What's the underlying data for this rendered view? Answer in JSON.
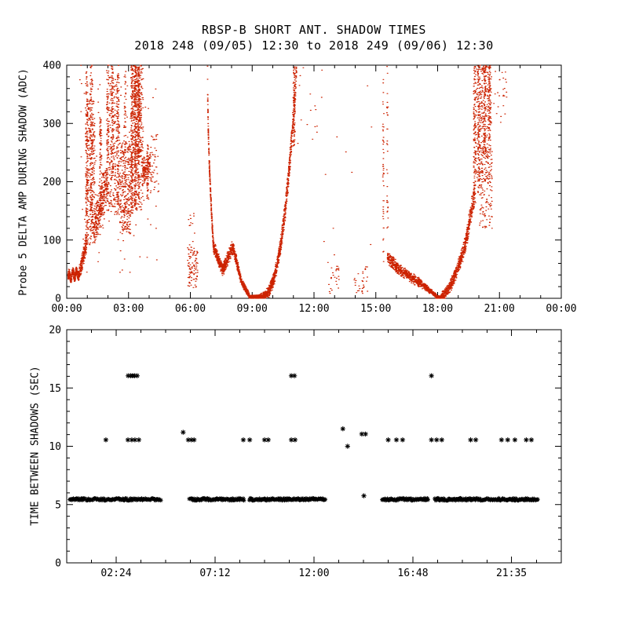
{
  "page": {
    "background": "#ffffff"
  },
  "chart_data": [
    {
      "type": "scatter",
      "panel": "top",
      "title": "RBSP-B SHORT ANT. SHADOW TIMES",
      "subtitle": "2018 248 (09/05) 12:30 to 2018 249 (09/06) 12:30",
      "ylabel": "Probe 5 DELTA AMP DURING SHADOW (ADC)",
      "xlim_hours": [
        0,
        24
      ],
      "ylim": [
        0,
        400
      ],
      "yticks": [
        0,
        100,
        200,
        300,
        400
      ],
      "ytick_minor_step": 20,
      "xticks": [
        {
          "hour": 0,
          "label": "00:00"
        },
        {
          "hour": 3,
          "label": "03:00"
        },
        {
          "hour": 6,
          "label": "06:00"
        },
        {
          "hour": 9,
          "label": "09:00"
        },
        {
          "hour": 12,
          "label": "12:00"
        },
        {
          "hour": 15,
          "label": "15:00"
        },
        {
          "hour": 18,
          "label": "18:00"
        },
        {
          "hour": 21,
          "label": "21:00"
        },
        {
          "hour": 24,
          "label": "00:00"
        }
      ],
      "xtick_minor_step": 1,
      "marker": "dot",
      "marker_color": "#cc2200",
      "segments": [
        {
          "kind": "band",
          "x": [
            0.05,
            0.6
          ],
          "y": [
            37,
            44
          ],
          "wave": 6,
          "waves": 3,
          "thick": 7,
          "n": 320
        },
        {
          "kind": "curve",
          "x": [
            0.6,
            0.95
          ],
          "y": [
            48,
            95
          ],
          "pow": 1.2,
          "thick": [
            14,
            22
          ],
          "n": 170
        },
        {
          "kind": "streak",
          "xc": 0.95,
          "y": [
            70,
            390
          ],
          "xjit": 0.05,
          "n": 150
        },
        {
          "kind": "cloud",
          "x": [
            0.95,
            1.35
          ],
          "y": [
            90,
            340
          ],
          "n": 280
        },
        {
          "kind": "streak",
          "xc": 1.18,
          "y": [
            100,
            400
          ],
          "xjit": 0.06,
          "n": 120
        },
        {
          "kind": "curve",
          "x": [
            1.3,
            1.95
          ],
          "y": [
            120,
            200
          ],
          "pow": 1,
          "thick": [
            40,
            50
          ],
          "n": 320
        },
        {
          "kind": "streak",
          "xc": 1.63,
          "y": [
            140,
            310
          ],
          "xjit": 0.05,
          "n": 90
        },
        {
          "kind": "streak",
          "xc": 1.97,
          "y": [
            150,
            400
          ],
          "xjit": 0.05,
          "n": 110
        },
        {
          "kind": "cloud",
          "x": [
            2.0,
            2.55
          ],
          "y": [
            140,
            380
          ],
          "n": 240
        },
        {
          "kind": "streak",
          "xc": 2.2,
          "y": [
            200,
            400
          ],
          "xjit": 0.05,
          "n": 90
        },
        {
          "kind": "streak",
          "xc": 2.46,
          "y": [
            160,
            400
          ],
          "xjit": 0.05,
          "n": 90
        },
        {
          "kind": "cloud",
          "x": [
            2.55,
            3.1
          ],
          "y": [
            110,
            270
          ],
          "n": 280
        },
        {
          "kind": "streak",
          "xc": 2.82,
          "y": [
            120,
            390
          ],
          "xjit": 0.04,
          "n": 70
        },
        {
          "kind": "streak",
          "xc": 3.15,
          "y": [
            140,
            400
          ],
          "xjit": 0.05,
          "n": 130
        },
        {
          "kind": "streak",
          "xc": 3.32,
          "y": [
            150,
            400
          ],
          "xjit": 0.05,
          "n": 150
        },
        {
          "kind": "streak",
          "xc": 3.47,
          "y": [
            160,
            400
          ],
          "xjit": 0.05,
          "n": 150
        },
        {
          "kind": "cloud",
          "x": [
            3.1,
            3.7
          ],
          "y": [
            150,
            400
          ],
          "n": 300
        },
        {
          "kind": "cloud",
          "x": [
            3.2,
            3.62
          ],
          "y": [
            250,
            400
          ],
          "n": 200
        },
        {
          "kind": "curve",
          "x": [
            3.65,
            4.05
          ],
          "y": [
            215,
            235
          ],
          "pow": 1,
          "thick": [
            28,
            20
          ],
          "n": 130
        },
        {
          "kind": "streak",
          "xc": 3.92,
          "y": [
            170,
            265
          ],
          "xjit": 0.04,
          "n": 60
        },
        {
          "kind": "cloud",
          "x": [
            4.05,
            4.45
          ],
          "y": [
            180,
            280
          ],
          "n": 45
        },
        {
          "kind": "cloud",
          "x": [
            0.6,
            4.4
          ],
          "y": [
            40,
            400
          ],
          "n": 110
        },
        {
          "kind": "cloud",
          "x": [
            5.85,
            6.35
          ],
          "y": [
            18,
            88
          ],
          "n": 95
        },
        {
          "kind": "cloud",
          "x": [
            5.9,
            6.3
          ],
          "y": [
            90,
            150
          ],
          "n": 12
        },
        {
          "kind": "curve",
          "x": [
            6.82,
            7.1
          ],
          "y": [
            400,
            95
          ],
          "pow": 0.5,
          "thick": [
            10,
            12
          ],
          "n": 210
        },
        {
          "kind": "curve",
          "x": [
            7.1,
            7.55
          ],
          "y": [
            90,
            48
          ],
          "pow": 1,
          "thick": [
            12,
            12
          ],
          "n": 230
        },
        {
          "kind": "curve",
          "x": [
            7.55,
            8.05
          ],
          "y": [
            48,
            88
          ],
          "pow": 1,
          "thick": [
            12,
            14
          ],
          "n": 230
        },
        {
          "kind": "curve",
          "x": [
            8.05,
            8.45
          ],
          "y": [
            88,
            30
          ],
          "pow": 1,
          "thick": [
            13,
            9
          ],
          "n": 210
        },
        {
          "kind": "curve",
          "x": [
            8.45,
            8.85
          ],
          "y": [
            30,
            4
          ],
          "pow": 1,
          "thick": [
            8,
            5
          ],
          "n": 220
        },
        {
          "kind": "band",
          "x": [
            8.85,
            9.35
          ],
          "y": [
            2,
            3
          ],
          "wave": 0,
          "waves": 0,
          "thick": 3,
          "n": 260
        },
        {
          "kind": "curve",
          "x": [
            9.35,
            11.15
          ],
          "y": [
            2,
            400
          ],
          "pow": 2.6,
          "thick": [
            6,
            26
          ],
          "n": 950
        },
        {
          "kind": "streak",
          "xc": 11.02,
          "y": [
            260,
            400
          ],
          "xjit": 0.05,
          "n": 80
        },
        {
          "kind": "cloud",
          "x": [
            11.2,
            12.4
          ],
          "y": [
            250,
            400
          ],
          "n": 16
        },
        {
          "kind": "cloud",
          "x": [
            12.6,
            13.2
          ],
          "y": [
            8,
            62
          ],
          "n": 26
        },
        {
          "kind": "cloud",
          "x": [
            13.9,
            14.6
          ],
          "y": [
            8,
            55
          ],
          "n": 30
        },
        {
          "kind": "cloud",
          "x": [
            12.4,
            14.9
          ],
          "y": [
            70,
            390
          ],
          "n": 10
        },
        {
          "kind": "streak",
          "xc": 15.35,
          "y": [
            55,
            400
          ],
          "xjit": 0.03,
          "n": 45
        },
        {
          "kind": "streak",
          "xc": 15.55,
          "y": [
            95,
            400
          ],
          "xjit": 0.03,
          "n": 32
        },
        {
          "kind": "curve",
          "x": [
            15.55,
            16.1
          ],
          "y": [
            70,
            50
          ],
          "pow": 1,
          "thick": [
            13,
            11
          ],
          "n": 190
        },
        {
          "kind": "curve",
          "x": [
            16.1,
            17.3
          ],
          "y": [
            50,
            22
          ],
          "pow": 1,
          "thick": [
            11,
            9
          ],
          "n": 330
        },
        {
          "kind": "curve",
          "x": [
            17.3,
            17.95
          ],
          "y": [
            22,
            3
          ],
          "pow": 1,
          "thick": [
            7,
            4
          ],
          "n": 260
        },
        {
          "kind": "band",
          "x": [
            17.9,
            18.18
          ],
          "y": [
            1.5,
            2
          ],
          "wave": 0,
          "waves": 0,
          "thick": 3,
          "n": 150
        },
        {
          "kind": "curve",
          "x": [
            18.15,
            19.35
          ],
          "y": [
            3,
            95
          ],
          "pow": 1.6,
          "thick": [
            8,
            18
          ],
          "n": 520
        },
        {
          "kind": "curve",
          "x": [
            19.35,
            19.78
          ],
          "y": [
            95,
            180
          ],
          "pow": 1,
          "thick": [
            20,
            24
          ],
          "n": 210
        },
        {
          "kind": "streak",
          "xc": 19.78,
          "y": [
            150,
            400
          ],
          "xjit": 0.05,
          "n": 110
        },
        {
          "kind": "streak",
          "xc": 19.98,
          "y": [
            180,
            400
          ],
          "xjit": 0.05,
          "n": 100
        },
        {
          "kind": "cloud",
          "x": [
            19.8,
            20.6
          ],
          "y": [
            200,
            400
          ],
          "n": 340
        },
        {
          "kind": "streak",
          "xc": 20.27,
          "y": [
            250,
            400
          ],
          "xjit": 0.05,
          "n": 90
        },
        {
          "kind": "streak",
          "xc": 20.5,
          "y": [
            260,
            400
          ],
          "xjit": 0.05,
          "n": 90
        },
        {
          "kind": "cloud",
          "x": [
            20.0,
            20.65
          ],
          "y": [
            120,
            260
          ],
          "n": 120
        },
        {
          "kind": "cloud",
          "x": [
            20.7,
            21.35
          ],
          "y": [
            300,
            400
          ],
          "n": 25
        }
      ]
    },
    {
      "type": "scatter",
      "panel": "bottom",
      "ylabel": "TIME BETWEEN SHADOWS (SEC)",
      "xlim_hours": [
        0,
        24
      ],
      "ylim": [
        0,
        20
      ],
      "yticks": [
        0,
        5,
        10,
        15,
        20
      ],
      "ytick_minor_step": 1,
      "xticks": [
        {
          "hour": 2.4,
          "label": "02:24"
        },
        {
          "hour": 7.2,
          "label": "07:12"
        },
        {
          "hour": 12.0,
          "label": "12:00"
        },
        {
          "hour": 16.8,
          "label": "16:48"
        },
        {
          "hour": 21.583,
          "label": "21:35"
        }
      ],
      "xtick_minor_step": 1.2,
      "marker": "asterisk",
      "marker_color": "#000000",
      "band_value": 5.45,
      "band_segments_hours": [
        [
          0.15,
          4.55
        ],
        [
          5.95,
          8.6
        ],
        [
          8.85,
          12.55
        ],
        [
          15.3,
          17.55
        ],
        [
          17.85,
          22.85
        ]
      ],
      "mid_value": 10.55,
      "mid_points_hours": [
        1.9,
        2.97,
        3.16,
        3.31,
        3.5,
        5.9,
        6.05,
        6.18,
        8.57,
        8.88,
        9.6,
        9.78,
        10.9,
        11.08,
        15.6,
        16.0,
        16.3,
        17.7,
        17.95,
        18.2,
        19.6,
        19.85,
        21.1,
        21.4,
        21.75,
        22.3,
        22.55
      ],
      "high_value": 16.05,
      "high_points_hours": [
        2.98,
        3.1,
        3.2,
        3.3,
        3.42,
        10.9,
        11.05,
        17.7
      ],
      "extra_points": [
        {
          "hour": 5.65,
          "value": 11.2
        },
        {
          "hour": 13.4,
          "value": 11.5
        },
        {
          "hour": 13.63,
          "value": 10.0
        },
        {
          "hour": 14.32,
          "value": 11.05
        },
        {
          "hour": 14.5,
          "value": 11.05
        },
        {
          "hour": 14.42,
          "value": 5.75
        }
      ]
    }
  ]
}
